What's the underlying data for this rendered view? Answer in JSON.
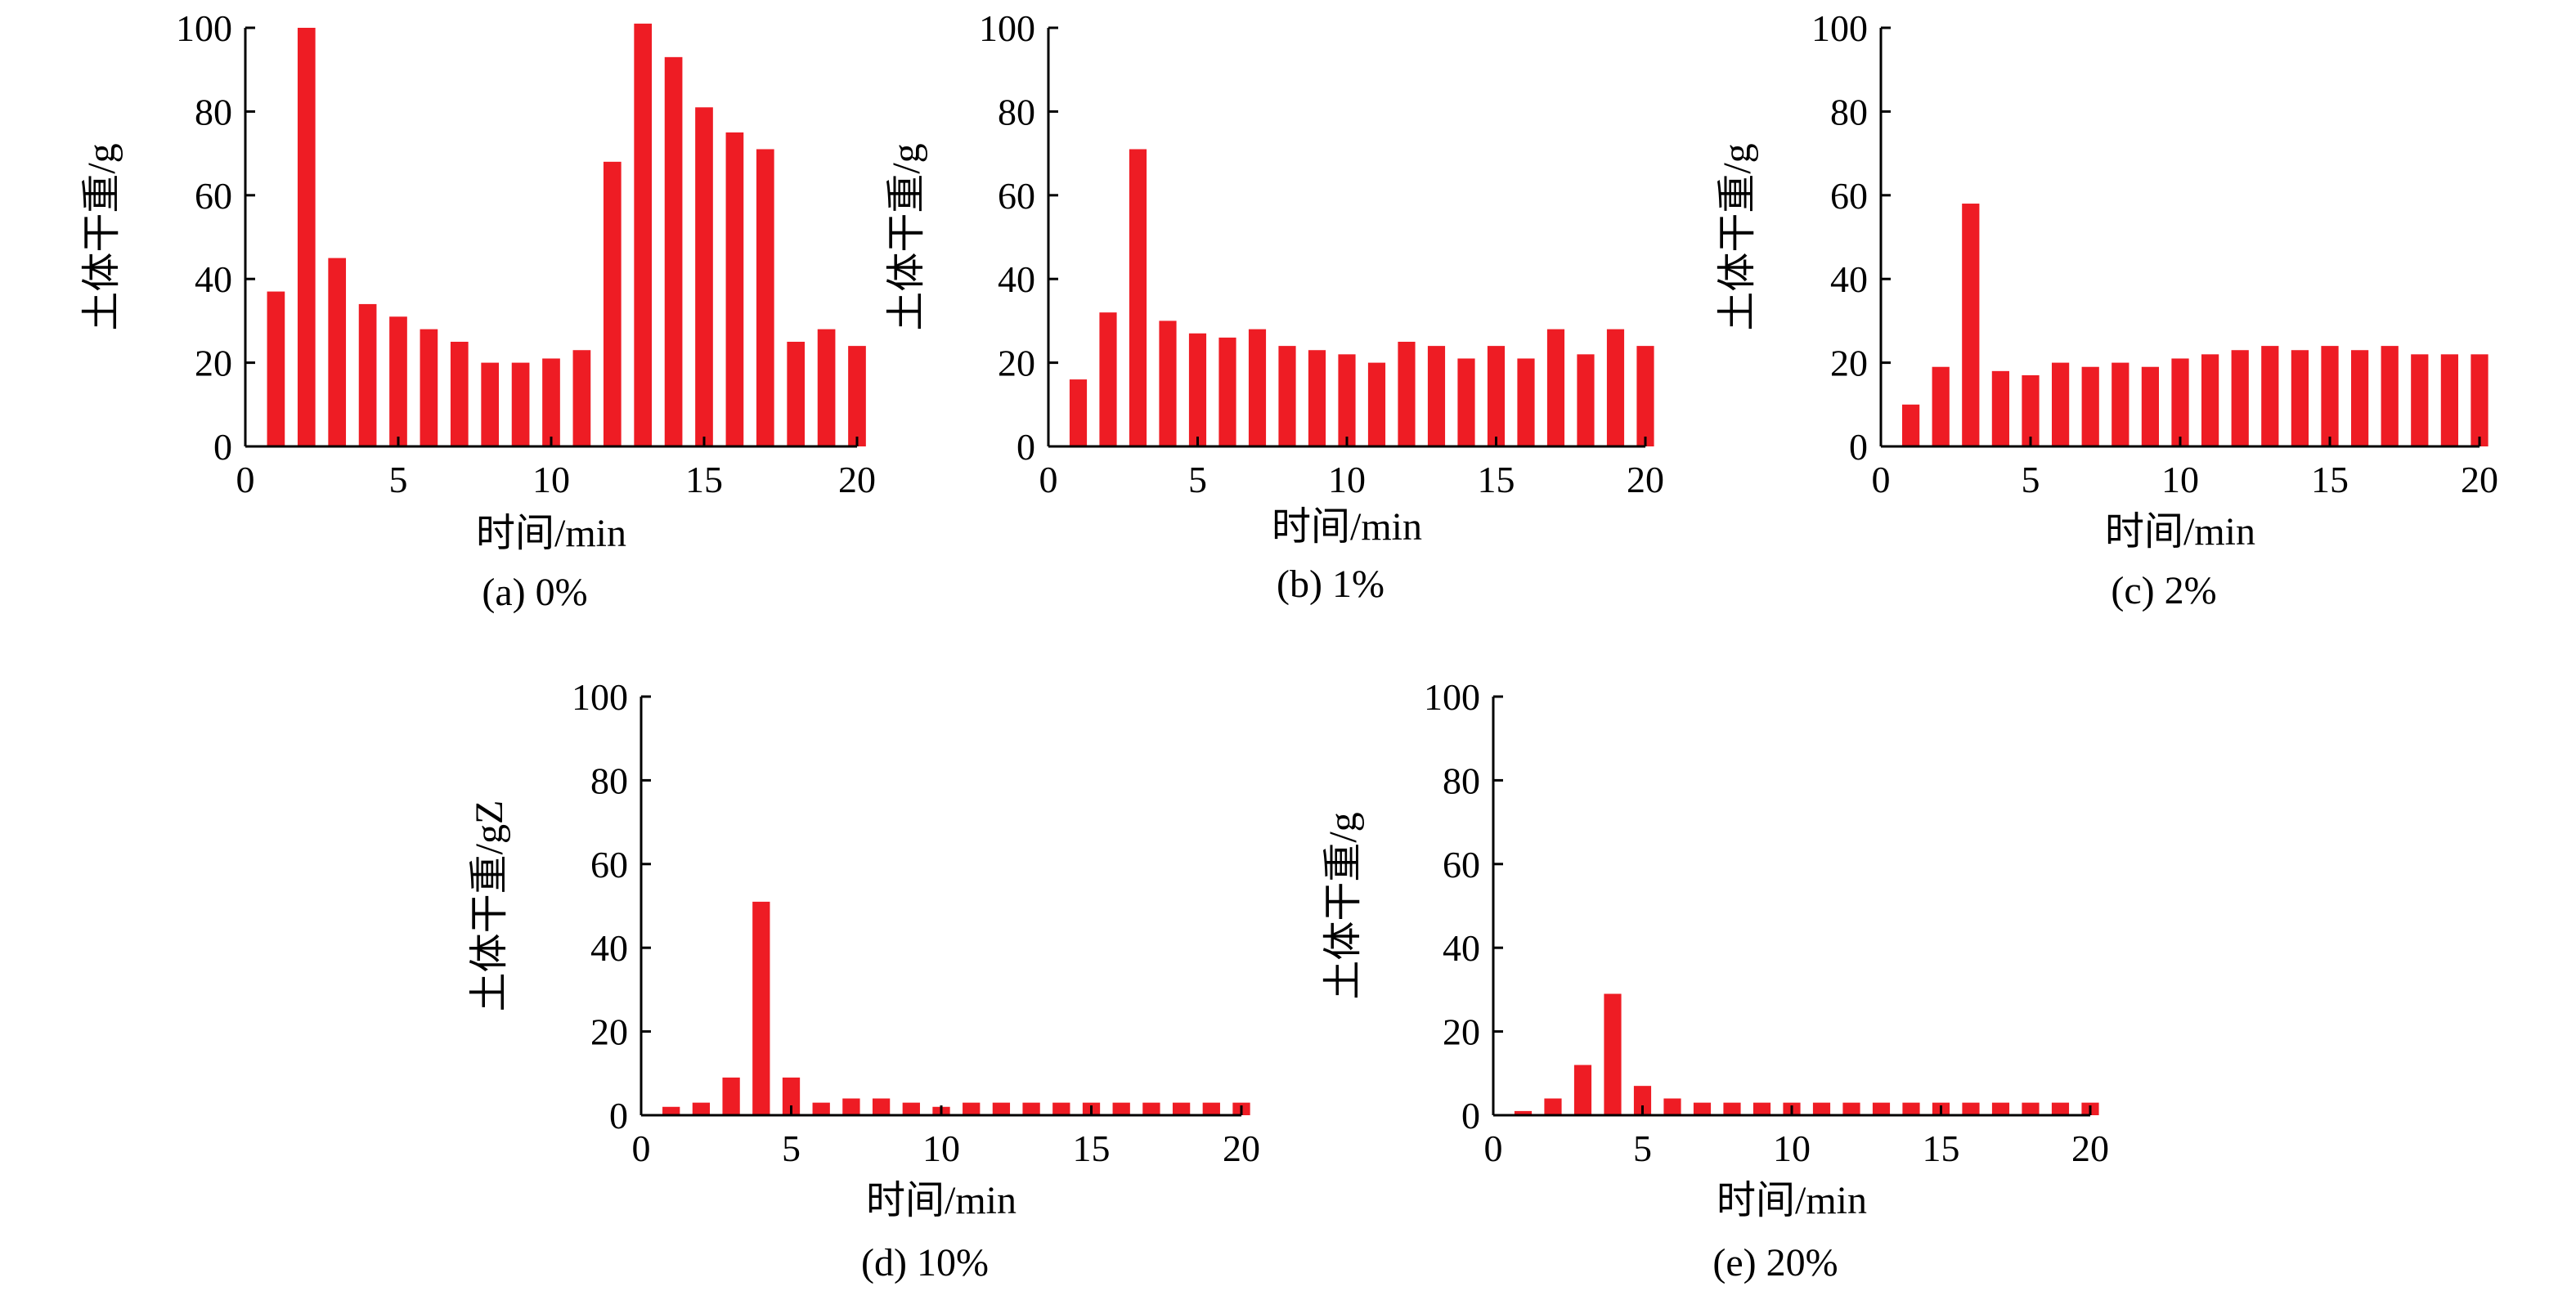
{
  "colors": {
    "bar": "#ee1c24",
    "axis": "#000000"
  },
  "chart_data": [
    {
      "type": "bar",
      "caption": "(a) 0%",
      "xlabel": "时间/min",
      "ylabel": "土体干重/g",
      "xlim": [
        0,
        20
      ],
      "ylim": [
        0,
        100
      ],
      "xticks": [
        0,
        5,
        10,
        15,
        20
      ],
      "yticks": [
        0,
        20,
        40,
        60,
        80,
        100
      ],
      "categories": [
        1,
        2,
        3,
        4,
        5,
        6,
        7,
        8,
        9,
        10,
        11,
        12,
        13,
        14,
        15,
        16,
        17,
        18,
        19,
        20
      ],
      "values": [
        37,
        100,
        45,
        34,
        31,
        28,
        25,
        20,
        20,
        21,
        23,
        68,
        101,
        93,
        81,
        75,
        71,
        25,
        28,
        24
      ]
    },
    {
      "type": "bar",
      "caption": "(b) 1%",
      "xlabel": "时间/min",
      "ylabel": "土体干重/g",
      "xlim": [
        0,
        20
      ],
      "ylim": [
        0,
        100
      ],
      "xticks": [
        0,
        5,
        10,
        15,
        20
      ],
      "yticks": [
        0,
        20,
        40,
        60,
        80,
        100
      ],
      "categories": [
        1,
        2,
        3,
        4,
        5,
        6,
        7,
        8,
        9,
        10,
        11,
        12,
        13,
        14,
        15,
        16,
        17,
        18,
        19,
        20
      ],
      "values": [
        16,
        32,
        71,
        30,
        27,
        26,
        28,
        24,
        23,
        22,
        20,
        25,
        24,
        21,
        24,
        21,
        28,
        22,
        28,
        24
      ]
    },
    {
      "type": "bar",
      "caption": "(c) 2%",
      "xlabel": "时间/min",
      "ylabel": "土体干重/g",
      "xlim": [
        0,
        20
      ],
      "ylim": [
        0,
        100
      ],
      "xticks": [
        0,
        5,
        10,
        15,
        20
      ],
      "yticks": [
        0,
        20,
        40,
        60,
        80,
        100
      ],
      "categories": [
        1,
        2,
        3,
        4,
        5,
        6,
        7,
        8,
        9,
        10,
        11,
        12,
        13,
        14,
        15,
        16,
        17,
        18,
        19,
        20
      ],
      "values": [
        10,
        19,
        58,
        18,
        17,
        20,
        19,
        20,
        19,
        21,
        22,
        23,
        24,
        23,
        24,
        23,
        24,
        22,
        22,
        22
      ]
    },
    {
      "type": "bar",
      "caption": "(d) 10%",
      "xlabel": "时间/min",
      "ylabel": "土体干重/gZ",
      "xlim": [
        0,
        20
      ],
      "ylim": [
        0,
        100
      ],
      "xticks": [
        0,
        5,
        10,
        15,
        20
      ],
      "yticks": [
        0,
        20,
        40,
        60,
        80,
        100
      ],
      "categories": [
        1,
        2,
        3,
        4,
        5,
        6,
        7,
        8,
        9,
        10,
        11,
        12,
        13,
        14,
        15,
        16,
        17,
        18,
        19,
        20
      ],
      "values": [
        2,
        3,
        9,
        51,
        9,
        3,
        4,
        4,
        3,
        2,
        3,
        3,
        3,
        3,
        3,
        3,
        3,
        3,
        3,
        3
      ]
    },
    {
      "type": "bar",
      "caption": "(e) 20%",
      "xlabel": "时间/min",
      "ylabel": "土体干重/g",
      "xlim": [
        0,
        20
      ],
      "ylim": [
        0,
        100
      ],
      "xticks": [
        0,
        5,
        10,
        15,
        20
      ],
      "yticks": [
        0,
        20,
        40,
        60,
        80,
        100
      ],
      "categories": [
        1,
        2,
        3,
        4,
        5,
        6,
        7,
        8,
        9,
        10,
        11,
        12,
        13,
        14,
        15,
        16,
        17,
        18,
        19,
        20
      ],
      "values": [
        1,
        4,
        12,
        29,
        7,
        4,
        3,
        3,
        3,
        3,
        3,
        3,
        3,
        3,
        3,
        3,
        3,
        3,
        3,
        3
      ]
    }
  ]
}
